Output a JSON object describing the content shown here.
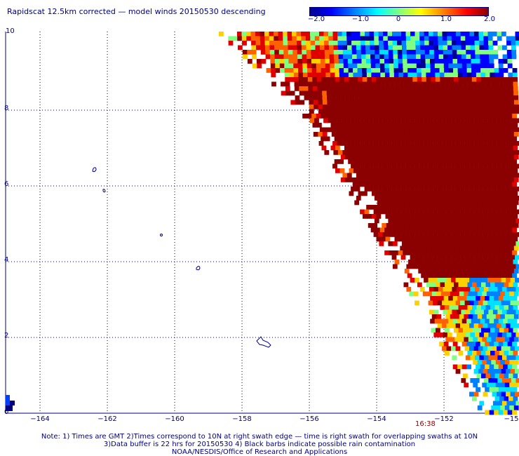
{
  "title": "Rapidscat 12.5km corrected — model winds 20150530 descending",
  "colorbar": {
    "ticks": [
      "−2.0",
      "−1.0",
      "0",
      "1.0",
      "2.0"
    ],
    "range": [
      -2.0,
      2.0
    ]
  },
  "colors": {
    "axis_text": "#000080",
    "land": "#000080",
    "max_positive": "#8b0000",
    "time_label": "#8b0000"
  },
  "axes": {
    "x_ticks": [
      "−164",
      "−162",
      "−160",
      "−158",
      "−156",
      "−154",
      "−152",
      "−15"
    ],
    "y_ticks": [
      "10",
      "8",
      "6",
      "4",
      "2",
      "0"
    ],
    "lon_range": [
      -165,
      -150
    ],
    "lat_range": [
      0,
      10
    ],
    "grid": "dotted"
  },
  "time_label": "16:38",
  "notes": [
    "Note: 1) Times are GMT 2)Times correspond to 10N at right swath edge — time is right swath for overlapping swaths at 10N",
    "3)Data buffer is 22 hrs for 20150530 4) Black barbs indicate possible rain contamination",
    "NOAA/NESDIS/Office of Research and Applications"
  ]
}
